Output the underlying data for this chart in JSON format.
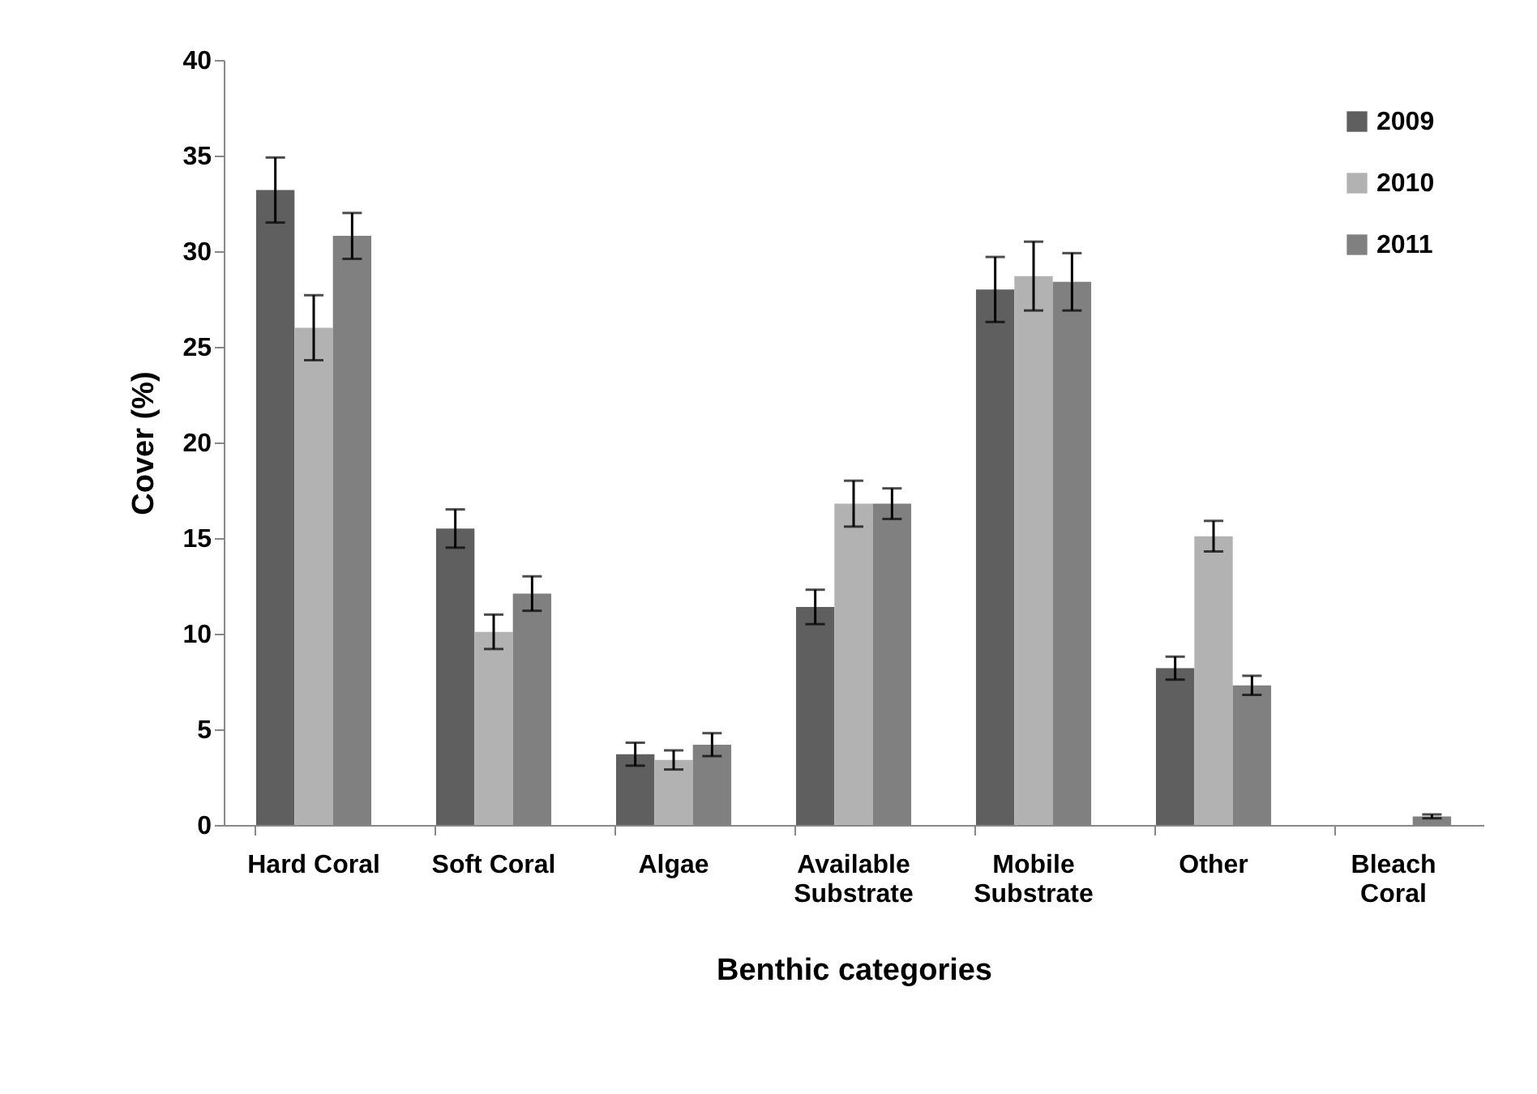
{
  "chart_data": {
    "type": "bar",
    "xlabel": "Benthic categories",
    "ylabel": "Cover (%)",
    "categories": [
      "Hard Coral",
      "Soft Coral",
      "Algae",
      "Available Substrate",
      "Mobile Substrate",
      "Other",
      "Bleach Coral"
    ],
    "series": [
      {
        "name": "2009",
        "color": "#5f5f5f",
        "values": [
          33.2,
          15.5,
          3.7,
          11.4,
          28.0,
          8.2,
          null
        ],
        "errors": [
          1.7,
          1.0,
          0.6,
          0.9,
          1.7,
          0.6,
          null
        ]
      },
      {
        "name": "2010",
        "color": "#b2b2b2",
        "values": [
          26.0,
          10.1,
          3.4,
          16.8,
          28.7,
          15.1,
          null
        ],
        "errors": [
          1.7,
          0.9,
          0.5,
          1.2,
          1.8,
          0.8,
          null
        ]
      },
      {
        "name": "2011",
        "color": "#808080",
        "values": [
          30.8,
          12.1,
          4.2,
          16.8,
          28.4,
          7.3,
          0.45
        ],
        "errors": [
          1.2,
          0.9,
          0.6,
          0.8,
          1.5,
          0.5,
          0.1
        ]
      }
    ],
    "ylim": [
      0,
      40
    ],
    "yticks": [
      0,
      5,
      10,
      15,
      20,
      25,
      30,
      35,
      40
    ],
    "grid": false,
    "legend": "top right"
  }
}
